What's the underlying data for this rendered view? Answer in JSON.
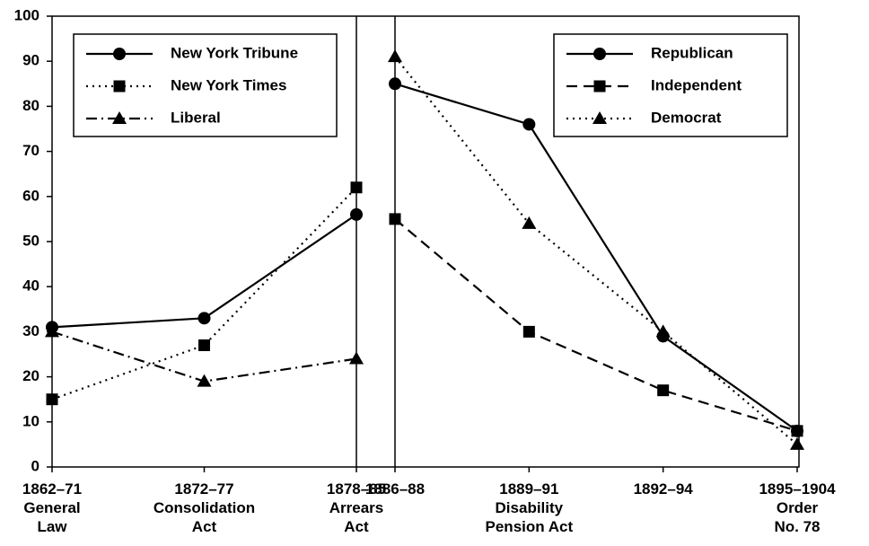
{
  "chart_data": [
    {
      "type": "line",
      "categories": [
        "1862–71\nGeneral\nLaw",
        "1872–77\nConsolidation\nAct",
        "1878–85\nArrears\nAct"
      ],
      "series": [
        {
          "name": "New York Tribune",
          "color": "#000000",
          "dash": "solid",
          "marker": "circle",
          "values": [
            31,
            33,
            56
          ]
        },
        {
          "name": "New York Times",
          "color": "#000000",
          "dash": "dotted",
          "marker": "square",
          "values": [
            15,
            27,
            62
          ]
        },
        {
          "name": "Liberal",
          "color": "#000000",
          "dash": "dashdot",
          "marker": "triangle",
          "values": [
            30,
            19,
            24
          ]
        }
      ],
      "ylim": [
        0,
        100
      ],
      "yticks": [
        0,
        10,
        20,
        30,
        40,
        50,
        60,
        70,
        80,
        90,
        100
      ],
      "legend": "upper left"
    },
    {
      "type": "line",
      "categories": [
        "1886–88",
        "1889–91\nDisability\nPension Act",
        "1892–94",
        "1895–1904\nOrder\nNo. 78"
      ],
      "series": [
        {
          "name": "Republican",
          "color": "#000000",
          "dash": "solid",
          "marker": "circle",
          "values": [
            85,
            76,
            29,
            8
          ]
        },
        {
          "name": "Independent",
          "color": "#000000",
          "dash": "dashed",
          "marker": "square",
          "values": [
            55,
            30,
            17,
            8
          ]
        },
        {
          "name": "Democrat",
          "color": "#000000",
          "dash": "dotted",
          "marker": "triangle",
          "values": [
            91,
            54,
            30,
            5
          ]
        }
      ],
      "ylim": [
        0,
        100
      ],
      "legend": "upper right"
    }
  ]
}
